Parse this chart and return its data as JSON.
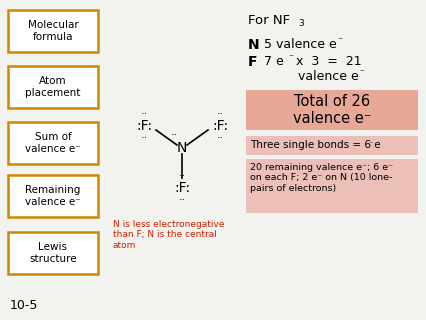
{
  "bg_color": "#f2f2ee",
  "box_edge_color": "#cc8800",
  "pink_bg": "#e8a898",
  "light_pink_bg": "#ecc0b8",
  "red_text": "#cc2200",
  "left_boxes": [
    "Molecular\nformula",
    "Atom\nplacement",
    "Sum of\nvalence e⁻",
    "Remaining\nvalence e⁻",
    "Lewis\nstructure"
  ],
  "slide_num": "10-5",
  "caption": "N is less electronegative\nthan F; N is the central\natom",
  "remaining_text": "20 remaining valence e⁻; 6 e⁻\non each F; 2 e⁻ on N (10 lone-\npairs of electrons)"
}
